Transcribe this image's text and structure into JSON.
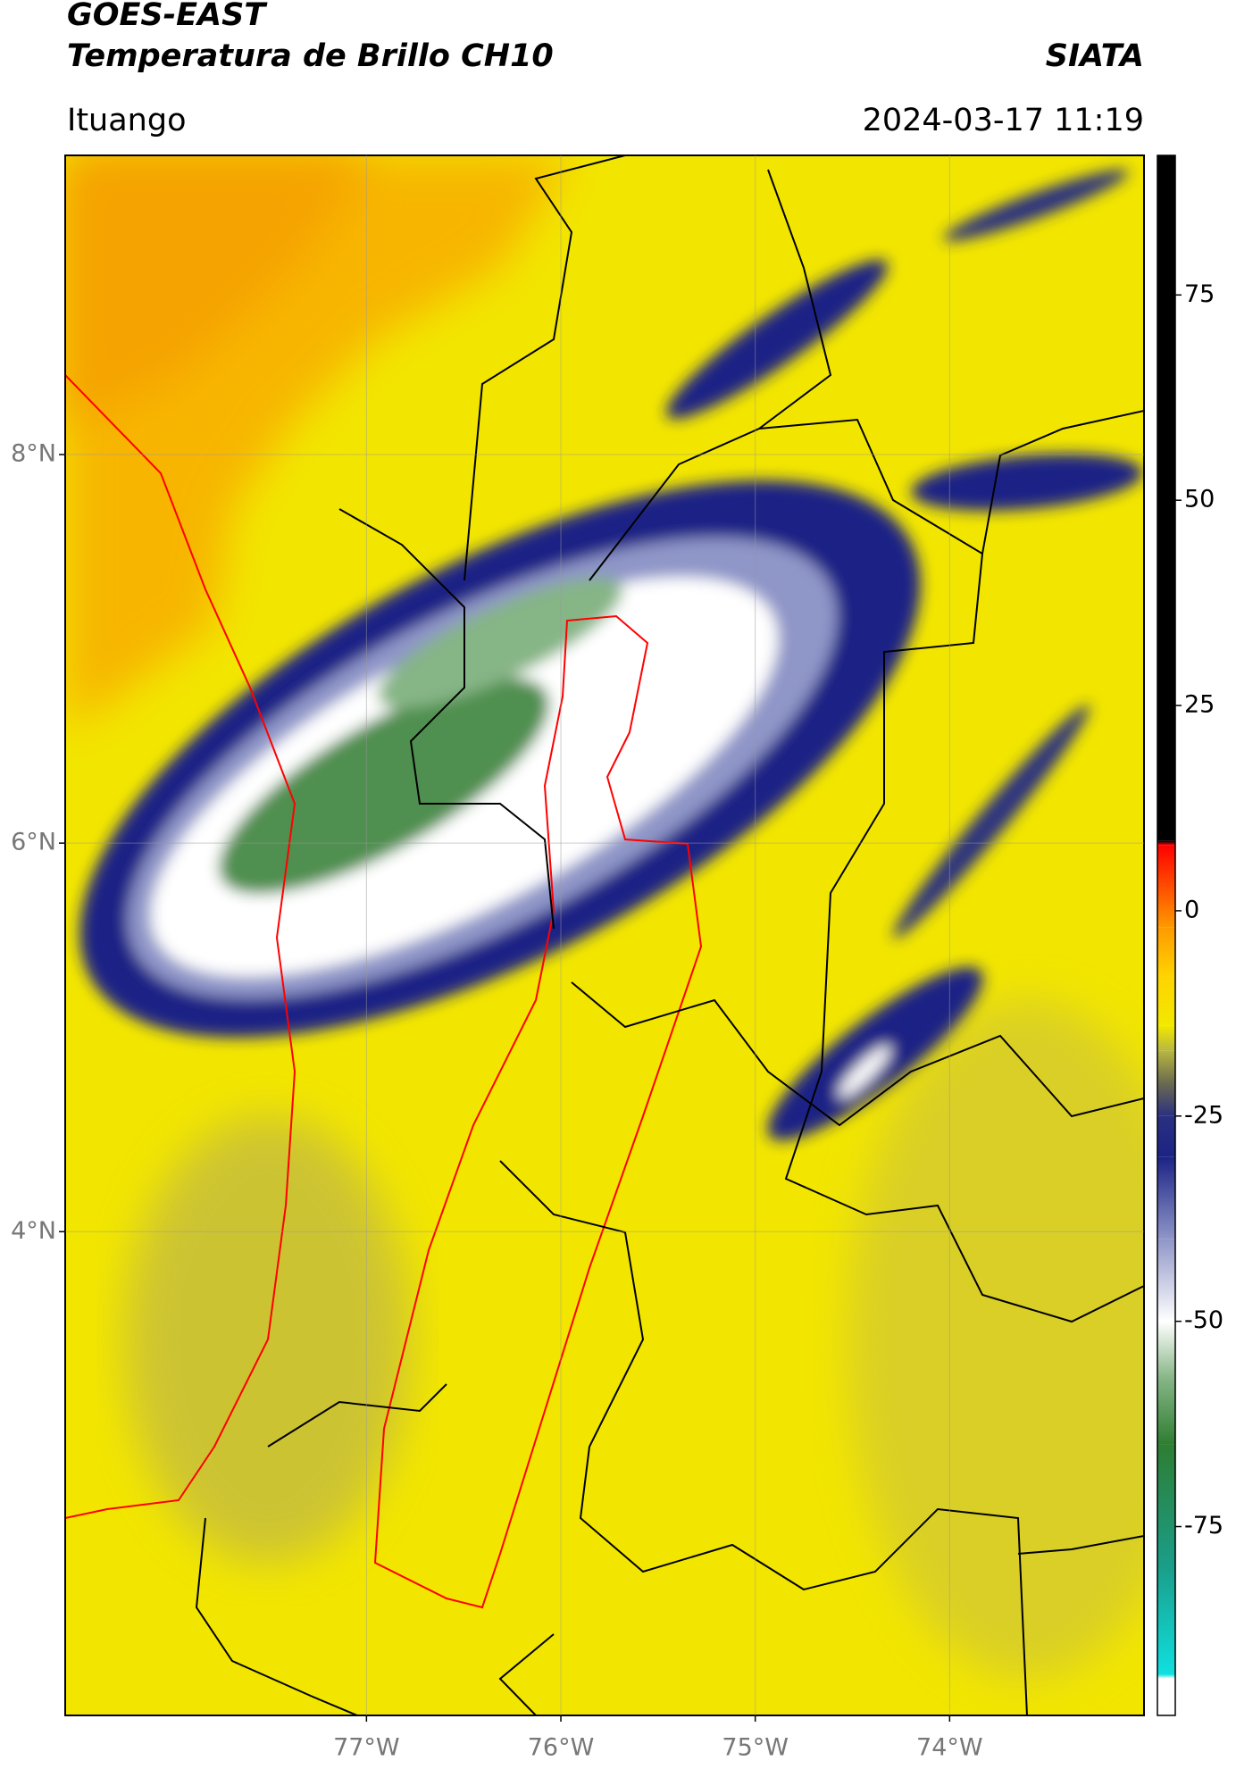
{
  "chart_data": {
    "type": "raster-map",
    "title": "GOES-EAST",
    "subtitle": "Temperatura de Brillo CH10",
    "source": "SIATA",
    "location": "Ituango",
    "datetime": "2024-03-17 11:19",
    "xlim": [
      -78.55,
      -73.0
    ],
    "ylim": [
      1.51,
      9.54
    ],
    "xticks": [
      {
        "value": -77,
        "label": "77°W"
      },
      {
        "value": -76,
        "label": "76°W"
      },
      {
        "value": -75,
        "label": "75°W"
      },
      {
        "value": -74,
        "label": "74°W"
      }
    ],
    "yticks": [
      {
        "value": 8,
        "label": "8°N"
      },
      {
        "value": 6,
        "label": "6°N"
      },
      {
        "value": 4,
        "label": "4°N"
      }
    ],
    "grid": true,
    "clim": [
      -98,
      92
    ],
    "cticks": [
      75,
      50,
      25,
      0,
      -25,
      -50,
      -75
    ],
    "colormap": [
      {
        "value": -98,
        "color": "#ffffff"
      },
      {
        "value": -93.5,
        "color": "#ffffff"
      },
      {
        "value": -93,
        "color": "#10e0e0"
      },
      {
        "value": -80,
        "color": "#1a9e8a"
      },
      {
        "value": -65,
        "color": "#2e7d32"
      },
      {
        "value": -57,
        "color": "#86b586"
      },
      {
        "value": -50,
        "color": "#ffffff"
      },
      {
        "value": -40,
        "color": "#8f96c8"
      },
      {
        "value": -30,
        "color": "#1c2385"
      },
      {
        "value": -25,
        "color": "#2a3080"
      },
      {
        "value": -21,
        "color": "#6b6a50"
      },
      {
        "value": -17,
        "color": "#b8b840"
      },
      {
        "value": -14,
        "color": "#f2e800"
      },
      {
        "value": -8,
        "color": "#ffd400"
      },
      {
        "value": -2,
        "color": "#ff9900"
      },
      {
        "value": 8,
        "color": "#ff0000"
      },
      {
        "value": 8.5,
        "color": "#000000"
      },
      {
        "value": 92,
        "color": "#000000"
      }
    ]
  }
}
